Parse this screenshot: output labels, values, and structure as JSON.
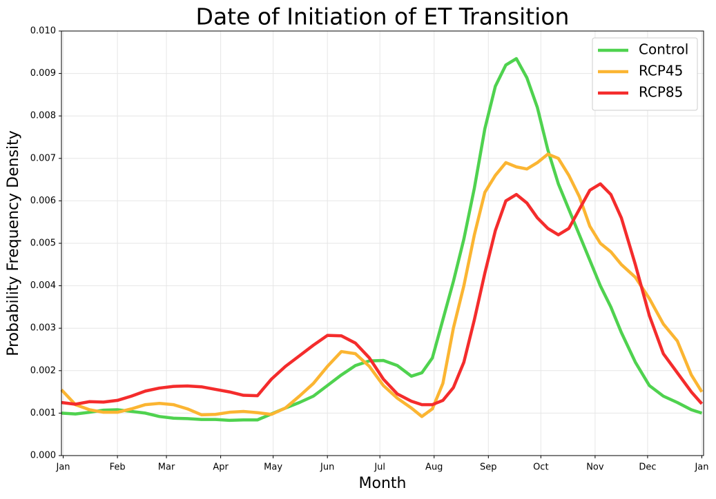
{
  "chart_data": {
    "type": "line",
    "title": "Date of Initiation of ET Transition",
    "x_label": "Month",
    "y_label": "Probability Frequency Density",
    "x": [
      0,
      8,
      16,
      24,
      32,
      40,
      48,
      56,
      64,
      72,
      80,
      88,
      96,
      104,
      112,
      120,
      128,
      136,
      144,
      152,
      160,
      168,
      176,
      184,
      192,
      200,
      206,
      212,
      218,
      224,
      230,
      236,
      242,
      248,
      254,
      260,
      266,
      272,
      278,
      284,
      290,
      296,
      302,
      308,
      314,
      320,
      328,
      336,
      344,
      352,
      360,
      366
    ],
    "series": [
      {
        "name": "Control",
        "color": "#4fd24f",
        "values": [
          0.001,
          0.00098,
          0.00102,
          0.00107,
          0.00108,
          0.00104,
          0.001,
          0.00092,
          0.00088,
          0.00087,
          0.00085,
          0.00085,
          0.00083,
          0.00084,
          0.00084,
          0.00098,
          0.00112,
          0.00125,
          0.0014,
          0.00165,
          0.0019,
          0.00212,
          0.00223,
          0.00224,
          0.00212,
          0.00187,
          0.00195,
          0.0023,
          0.0032,
          0.0041,
          0.0051,
          0.0063,
          0.0077,
          0.0087,
          0.0092,
          0.00935,
          0.0089,
          0.0082,
          0.0072,
          0.0064,
          0.0058,
          0.0052,
          0.0046,
          0.004,
          0.0035,
          0.0029,
          0.0022,
          0.00165,
          0.0014,
          0.00125,
          0.00108,
          0.001
        ]
      },
      {
        "name": "RCP45",
        "color": "#fbb532",
        "values": [
          0.00155,
          0.0012,
          0.00108,
          0.00102,
          0.00102,
          0.0011,
          0.0012,
          0.00123,
          0.0012,
          0.0011,
          0.00096,
          0.00097,
          0.00102,
          0.00104,
          0.00101,
          0.00097,
          0.00112,
          0.0014,
          0.0017,
          0.0021,
          0.00245,
          0.0024,
          0.0021,
          0.00165,
          0.00135,
          0.00112,
          0.00092,
          0.0011,
          0.0017,
          0.003,
          0.004,
          0.0052,
          0.0062,
          0.0066,
          0.0069,
          0.0068,
          0.00675,
          0.0069,
          0.0071,
          0.007,
          0.0066,
          0.0061,
          0.0054,
          0.005,
          0.0048,
          0.0045,
          0.0042,
          0.0037,
          0.0031,
          0.0027,
          0.0019,
          0.0015
        ]
      },
      {
        "name": "RCP85",
        "color": "#f42c2c",
        "values": [
          0.00125,
          0.00121,
          0.00127,
          0.00126,
          0.0013,
          0.0014,
          0.00152,
          0.00159,
          0.00163,
          0.00164,
          0.00162,
          0.00156,
          0.0015,
          0.00142,
          0.00141,
          0.0018,
          0.0021,
          0.00235,
          0.0026,
          0.00283,
          0.00282,
          0.00265,
          0.0023,
          0.0018,
          0.00145,
          0.00128,
          0.0012,
          0.0012,
          0.0013,
          0.0016,
          0.0022,
          0.0032,
          0.0043,
          0.0053,
          0.006,
          0.00615,
          0.00595,
          0.0056,
          0.00535,
          0.0052,
          0.00535,
          0.0058,
          0.00625,
          0.0064,
          0.00615,
          0.0056,
          0.0045,
          0.0033,
          0.0024,
          0.00195,
          0.0015,
          0.00122
        ]
      }
    ],
    "xlim": [
      0,
      367
    ],
    "xticks": [
      {
        "value": 1,
        "label": "Jan"
      },
      {
        "value": 32,
        "label": "Feb"
      },
      {
        "value": 60,
        "label": "Mar"
      },
      {
        "value": 91,
        "label": "Apr"
      },
      {
        "value": 121,
        "label": "May"
      },
      {
        "value": 152,
        "label": "Jun"
      },
      {
        "value": 182,
        "label": "Jul"
      },
      {
        "value": 213,
        "label": "Aug"
      },
      {
        "value": 244,
        "label": "Sep"
      },
      {
        "value": 274,
        "label": "Oct"
      },
      {
        "value": 305,
        "label": "Nov"
      },
      {
        "value": 335,
        "label": "Dec"
      },
      {
        "value": 366,
        "label": "Jan"
      }
    ],
    "ylim": [
      0,
      0.01
    ],
    "yticks": [
      {
        "value": 0,
        "label": "0.000"
      },
      {
        "value": 0.001,
        "label": "0.001"
      },
      {
        "value": 0.002,
        "label": "0.002"
      },
      {
        "value": 0.003,
        "label": "0.003"
      },
      {
        "value": 0.004,
        "label": "0.004"
      },
      {
        "value": 0.005,
        "label": "0.005"
      },
      {
        "value": 0.006,
        "label": "0.006"
      },
      {
        "value": 0.007,
        "label": "0.007"
      },
      {
        "value": 0.008,
        "label": "0.008"
      },
      {
        "value": 0.009,
        "label": "0.009"
      },
      {
        "value": 0.01,
        "label": "0.010"
      }
    ],
    "grid": true,
    "legend": "upper right"
  }
}
